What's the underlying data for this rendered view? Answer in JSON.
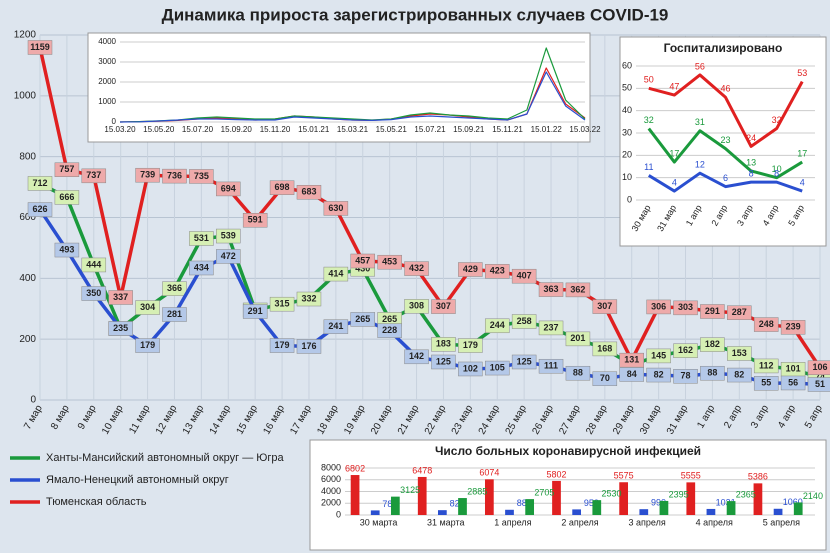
{
  "chart_data": [
    {
      "type": "line",
      "title": "Динамика прироста зарегистрированных случаев COVID-19",
      "categories": [
        "7 мар",
        "8 мар",
        "9 мар",
        "10 мар",
        "11 мар",
        "12 мар",
        "13 мар",
        "14 мар",
        "15 мар",
        "16 мар",
        "17 мар",
        "18 мар",
        "19 мар",
        "20 мар",
        "21 мар",
        "22 мар",
        "23 мар",
        "24 мар",
        "25 мар",
        "26 мар",
        "27 мар",
        "28 мар",
        "29 мар",
        "30 мар",
        "31 мар",
        "1 апр",
        "2 апр",
        "3 апр",
        "4 апр",
        "5 апр"
      ],
      "series": [
        {
          "name": "Ханты-Мансийский автономный округ — Югра",
          "color": "#1a9a3c",
          "values": [
            712,
            666,
            444,
            235,
            304,
            366,
            531,
            539,
            296,
            315,
            332,
            414,
            430,
            265,
            308,
            183,
            179,
            244,
            258,
            237,
            201,
            168,
            116,
            145,
            162,
            182,
            153,
            112,
            101,
            74
          ]
        },
        {
          "name": "Ямало-Ненецкий автономный округ",
          "color": "#2a4fd0",
          "values": [
            626,
            493,
            350,
            235,
            179,
            281,
            434,
            472,
            291,
            179,
            176,
            241,
            265,
            228,
            142,
            125,
            102,
            105,
            125,
            111,
            88,
            70,
            84,
            82,
            78,
            88,
            82,
            55,
            56,
            51
          ]
        },
        {
          "name": "Тюменская область",
          "color": "#e02020",
          "values": [
            1159,
            757,
            737,
            337,
            739,
            736,
            735,
            694,
            591,
            698,
            683,
            630,
            457,
            453,
            432,
            307,
            429,
            423,
            407,
            363,
            362,
            307,
            131,
            306,
            303,
            291,
            287,
            248,
            239,
            106
          ]
        }
      ],
      "ylim": [
        0,
        1200
      ],
      "yticks": [
        0,
        200,
        400,
        600,
        800,
        1000,
        1200
      ],
      "grid": true,
      "data_labels": true,
      "legend": "bottom-left"
    },
    {
      "type": "line",
      "categories": [
        "15.03.20",
        null,
        "15.05.20",
        null,
        "15.07.20",
        null,
        "15.09.20",
        null,
        "15.11.20",
        null,
        "15.01.21",
        null,
        "15.03.21",
        null,
        "15.05.21",
        null,
        "15.07.21",
        null,
        "15.09.21",
        null,
        "15.11.21",
        null,
        "15.01.22",
        null,
        "15.03.22"
      ],
      "series": [
        {
          "color": "#e02020",
          "values": [
            0,
            20,
            40,
            80,
            150,
            200,
            150,
            100,
            150,
            300,
            250,
            150,
            100,
            80,
            150,
            300,
            400,
            350,
            250,
            150,
            100,
            400,
            2700,
            900,
            200
          ]
        },
        {
          "color": "#1a9a3c",
          "values": [
            0,
            20,
            60,
            100,
            200,
            250,
            200,
            150,
            150,
            300,
            250,
            200,
            150,
            100,
            150,
            350,
            450,
            350,
            300,
            200,
            150,
            600,
            3700,
            1100,
            150
          ]
        },
        {
          "color": "#2a4fd0",
          "values": [
            0,
            10,
            50,
            100,
            150,
            150,
            120,
            100,
            100,
            250,
            200,
            150,
            100,
            80,
            120,
            250,
            300,
            250,
            200,
            150,
            100,
            400,
            2500,
            800,
            100
          ]
        }
      ],
      "ylim": [
        0,
        4000
      ],
      "yticks": [
        0,
        1000,
        2000,
        3000,
        4000
      ],
      "grid": true,
      "data_labels": false
    },
    {
      "type": "line",
      "title": "Госпитализировано",
      "categories": [
        "30 мар",
        "31 мар",
        "1 апр",
        "2 апр",
        "3 апр",
        "4 апр",
        "5 апр"
      ],
      "series": [
        {
          "color": "#e02020",
          "values": [
            50,
            47,
            56,
            46,
            24,
            32,
            53
          ]
        },
        {
          "color": "#1a9a3c",
          "values": [
            32,
            17,
            31,
            23,
            13,
            10,
            17
          ]
        },
        {
          "color": "#2a4fd0",
          "values": [
            11,
            4,
            12,
            6,
            8,
            8,
            4
          ]
        }
      ],
      "ylim": [
        0,
        60
      ],
      "yticks": [
        0,
        10,
        20,
        30,
        40,
        50,
        60
      ],
      "grid": true,
      "data_labels": true
    },
    {
      "type": "bar",
      "title": "Число больных коронавирусной инфекцией",
      "categories": [
        "30 марта",
        "31 марта",
        "1 апреля",
        "2 апреля",
        "3 апреля",
        "4 апреля",
        "5 апреля"
      ],
      "series": [
        {
          "color": "#e02020",
          "values": [
            6802,
            6478,
            6074,
            5802,
            5575,
            5555,
            5386
          ]
        },
        {
          "color": "#2a4fd0",
          "values": [
            781,
            822,
            888,
            953,
            990,
            1031,
            1060
          ]
        },
        {
          "color": "#1a9a3c",
          "values": [
            3125,
            2885,
            2705,
            2530,
            2395,
            2365,
            2140
          ]
        }
      ],
      "ylim": [
        0,
        8000
      ],
      "yticks": [
        0,
        2000,
        4000,
        6000,
        8000
      ],
      "grid": true,
      "data_labels": true
    }
  ]
}
